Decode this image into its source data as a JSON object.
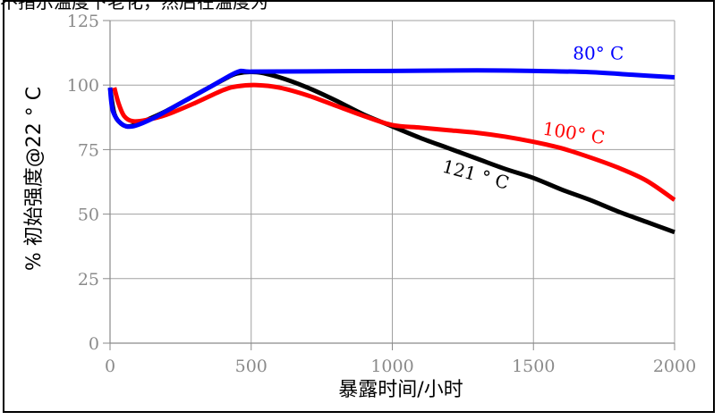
{
  "header_fragment": "不指示温度下老化，然后在温度为",
  "chart_data": {
    "type": "line",
    "xlabel": "暴露时间/小时",
    "ylabel": "% 初始强度@22 ° C",
    "xlim": [
      0,
      2000
    ],
    "ylim": [
      0,
      125
    ],
    "x_ticks": [
      0,
      500,
      1000,
      1500,
      2000
    ],
    "y_ticks": [
      0,
      25,
      50,
      75,
      100,
      125
    ],
    "grid": true,
    "series": [
      {
        "name": "80° C",
        "color": "#0000ff",
        "points": [
          [
            0,
            99
          ],
          [
            10,
            90
          ],
          [
            40,
            85
          ],
          [
            80,
            84
          ],
          [
            150,
            87
          ],
          [
            250,
            93
          ],
          [
            350,
            99
          ],
          [
            450,
            105
          ],
          [
            500,
            105.2
          ],
          [
            700,
            105.3
          ],
          [
            1000,
            105.5
          ],
          [
            1300,
            105.7
          ],
          [
            1500,
            105.5
          ],
          [
            1700,
            105
          ],
          [
            1850,
            104
          ],
          [
            2000,
            103
          ]
        ]
      },
      {
        "name": "100° C",
        "color": "#ff0000",
        "points": [
          [
            15,
            99
          ],
          [
            30,
            93
          ],
          [
            50,
            88
          ],
          [
            80,
            86
          ],
          [
            130,
            86.5
          ],
          [
            200,
            88.5
          ],
          [
            300,
            93
          ],
          [
            400,
            98
          ],
          [
            450,
            99.5
          ],
          [
            520,
            100
          ],
          [
            600,
            99
          ],
          [
            700,
            96
          ],
          [
            800,
            92
          ],
          [
            900,
            88
          ],
          [
            1000,
            84.5
          ],
          [
            1100,
            83.5
          ],
          [
            1200,
            82.5
          ],
          [
            1300,
            81.5
          ],
          [
            1400,
            80
          ],
          [
            1500,
            78
          ],
          [
            1600,
            75.5
          ],
          [
            1700,
            72
          ],
          [
            1800,
            68
          ],
          [
            1900,
            63
          ],
          [
            2000,
            55.5
          ]
        ]
      },
      {
        "name": "121 ° C",
        "color": "#000000",
        "points": [
          [
            0,
            99
          ],
          [
            15,
            89
          ],
          [
            40,
            85
          ],
          [
            70,
            84
          ],
          [
            120,
            86
          ],
          [
            200,
            90
          ],
          [
            300,
            96
          ],
          [
            400,
            102
          ],
          [
            450,
            104.5
          ],
          [
            520,
            105
          ],
          [
            600,
            103
          ],
          [
            700,
            99
          ],
          [
            800,
            94
          ],
          [
            900,
            88.5
          ],
          [
            1000,
            84
          ],
          [
            1100,
            79.5
          ],
          [
            1200,
            75.5
          ],
          [
            1300,
            71.5
          ],
          [
            1400,
            67.5
          ],
          [
            1500,
            64
          ],
          [
            1600,
            59.5
          ],
          [
            1700,
            55.5
          ],
          [
            1800,
            51
          ],
          [
            1900,
            47
          ],
          [
            2000,
            43
          ]
        ]
      }
    ]
  }
}
